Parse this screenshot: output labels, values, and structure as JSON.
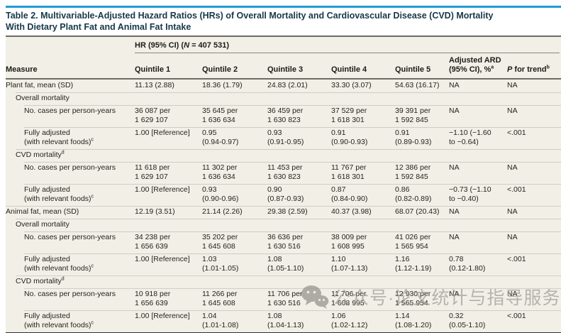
{
  "title": "Table 2. Multivariable-Adjusted Hazard Ratios (HRs) of Overall Mortality and Cardiovascular Disease (CVD) Mortality\nWith Dietary Plant Fat and Animal Fat Intake",
  "table": {
    "spanner": {
      "pre": "HR (95% CI) (",
      "n_italic": "N",
      "post": " = 407 531)"
    },
    "columns": {
      "measure": "Measure",
      "quintiles": [
        "Quintile 1",
        "Quintile 2",
        "Quintile 3",
        "Quintile 4",
        "Quintile 5"
      ],
      "ard_line": "Adjusted ARD\n(95% CI), %",
      "ard_sup": "a",
      "p_italic": "P",
      "p_rest": " for trend",
      "p_sup": "b"
    },
    "rows": [
      {
        "label": "Plant fat, mean (SD)",
        "indent": 0,
        "cells": [
          "11.13 (2.88)",
          "18.36 (1.79)",
          "24.83 (2.01)",
          "33.30 (3.07)",
          "54.63 (16.17)",
          "NA",
          "NA"
        ]
      },
      {
        "label": "Overall mortality",
        "indent": 14,
        "section": true,
        "cells": []
      },
      {
        "label": "No. cases per person-years",
        "indent": 26,
        "cells": [
          "36 087 per\n1 629 107",
          "35 645 per\n1 636 634",
          "36 459 per\n1 630 823",
          "37 529 per\n1 618 301",
          "39 391 per\n1 592 845",
          "NA",
          "NA"
        ]
      },
      {
        "label": "Fully adjusted\n(with relevant foods)",
        "sup": "c",
        "indent": 26,
        "cells": [
          "1.00 [Reference]",
          "0.95\n(0.94-0.97)",
          "0.93\n(0.91-0.95)",
          "0.91\n(0.90-0.93)",
          "0.91\n(0.89-0.93)",
          "−1.10 (−1.60\nto −0.64)",
          "<.001"
        ]
      },
      {
        "label": "CVD mortality",
        "sup": "d",
        "indent": 14,
        "section": true,
        "cells": []
      },
      {
        "label": "No. cases per person-years",
        "indent": 26,
        "cells": [
          "11 618 per\n1 629 107",
          "11 302 per\n1 636 634",
          "11 453 per\n1 630 823",
          "11 767 per\n1 618 301",
          "12 386 per\n1 592 845",
          "NA",
          "NA"
        ]
      },
      {
        "label": "Fully adjusted\n(with relevant foods)",
        "sup": "c",
        "indent": 26,
        "cells": [
          "1.00 [Reference]",
          "0.93\n(0.90-0.96)",
          "0.90\n(0.87-0.93)",
          "0.87\n(0.84-0.90)",
          "0.86\n(0.82-0.89)",
          "−0.73 (−1.10\nto −0.40)",
          "<.001"
        ]
      },
      {
        "label": "Animal fat, mean (SD)",
        "indent": 0,
        "cells": [
          "12.19 (3.51)",
          "21.14 (2.26)",
          "29.38 (2.59)",
          "40.37 (3.98)",
          "68.07 (20.43)",
          "NA",
          "NA"
        ]
      },
      {
        "label": "Overall mortality",
        "indent": 14,
        "section": true,
        "cells": []
      },
      {
        "label": "No. cases per person-years",
        "indent": 26,
        "cells": [
          "34 238 per\n1 656 639",
          "35 202 per\n1 645 608",
          "36 636 per\n1 630 516",
          "38 009 per\n1 608 995",
          "41 026 per\n1 565 954",
          "NA",
          "NA"
        ]
      },
      {
        "label": "Fully adjusted\n(with relevant foods)",
        "sup": "c",
        "indent": 26,
        "cells": [
          "1.00 [Reference]",
          "1.03\n(1.01-1.05)",
          "1.08\n(1.05-1.10)",
          "1.10\n(1.07-1.13)",
          "1.16\n(1.12-1.19)",
          "0.78\n(0.12-1.80)",
          "<.001"
        ]
      },
      {
        "label": "CVD mortality",
        "sup": "d",
        "indent": 14,
        "section": true,
        "cells": []
      },
      {
        "label": "No. cases per person-years",
        "indent": 26,
        "cells": [
          "10 918 per\n1 656 639",
          "11 266 per\n1 645 608",
          "11 706 per\n1 630 516",
          "11 706 per\n1 608 995",
          "12 930 per\n1 565 954",
          "NA",
          "NA"
        ]
      },
      {
        "label": "Fully adjusted\n(with relevant foods)",
        "sup": "c",
        "indent": 26,
        "cells": [
          "1.00 [Reference]",
          "1.04\n(1.01-1.08)",
          "1.08\n(1.04-1.13)",
          "1.06\n(1.02-1.12)",
          "1.14\n(1.08-1.20)",
          "0.32\n(0.05-1.10)",
          "<.001"
        ]
      }
    ]
  },
  "watermark": {
    "icon": "wechat-icon",
    "text": "公众号·论文统计与指导服务"
  },
  "colors": {
    "accent": "#1E9CD3",
    "panel_bg": "#F1EFE6",
    "rule_light": "#D0CEC4",
    "rule_dark": "#6F6D63",
    "rule_bottom": "#2F2E2A",
    "title_text": "#17384A",
    "body_text": "#24241F",
    "watermark": "#A5A39C"
  }
}
